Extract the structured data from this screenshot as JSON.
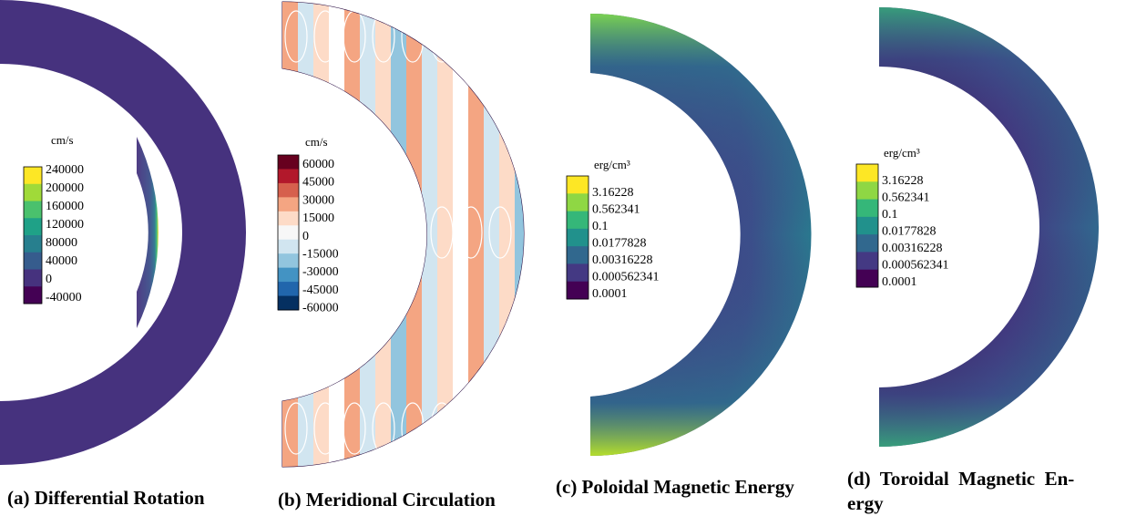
{
  "panels": [
    {
      "id": "a",
      "caption": "(a) Differential Rotation",
      "legend": {
        "unit": "cm/s",
        "ticks": [
          "240000",
          "200000",
          "160000",
          "120000",
          "80000",
          "40000",
          "0",
          "-40000"
        ],
        "colors": [
          "#fde725",
          "#a0da39",
          "#4ac16d",
          "#1fa187",
          "#277f8e",
          "#365c8d",
          "#46327e",
          "#440154"
        ]
      }
    },
    {
      "id": "b",
      "caption": "(b) Meridional Circulation",
      "legend": {
        "unit": "cm/s",
        "ticks": [
          "60000",
          "45000",
          "30000",
          "15000",
          "0",
          "-15000",
          "-30000",
          "-45000",
          "-60000"
        ],
        "colors": [
          "#67001f",
          "#b2182b",
          "#d6604d",
          "#f4a582",
          "#fddbc7",
          "#f7f7f7",
          "#d1e5f0",
          "#92c5de",
          "#4393c3",
          "#2166ac",
          "#053061"
        ]
      }
    },
    {
      "id": "c",
      "caption": "(c) Poloidal Magnetic Energy",
      "legend": {
        "unit": "erg/cm³",
        "ticks": [
          "3.16228",
          "0.562341",
          "0.1",
          "0.0177828",
          "0.00316228",
          "0.000562341",
          "0.0001"
        ],
        "colors": [
          "#fde725",
          "#8fd744",
          "#35b779",
          "#21918c",
          "#31688e",
          "#443983",
          "#440154"
        ]
      }
    },
    {
      "id": "d",
      "caption": "(d) Toroidal Magnetic Energy",
      "caption_lines": [
        "(d)  Toroidal  Magnetic  En-",
        "ergy"
      ],
      "legend": {
        "unit": "erg/cm³",
        "ticks": [
          "3.16228",
          "0.562341",
          "0.1",
          "0.0177828",
          "0.00316228",
          "0.000562341",
          "0.0001"
        ],
        "colors": [
          "#fde725",
          "#8fd744",
          "#35b779",
          "#21918c",
          "#31688e",
          "#443983",
          "#440154"
        ]
      }
    }
  ]
}
